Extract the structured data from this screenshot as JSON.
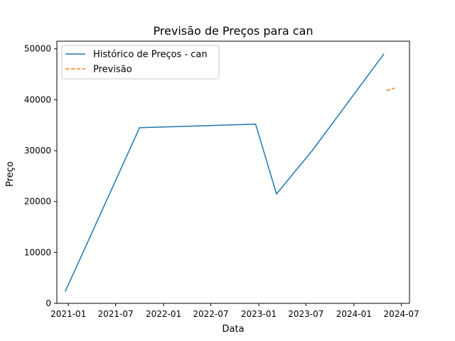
{
  "chart_data": {
    "type": "line",
    "title": "Previsão de Preços para can",
    "xlabel": "Data",
    "ylabel": "Preço",
    "x_type": "date",
    "xlim": [
      "2020-11-18",
      "2024-08-01"
    ],
    "ylim": [
      0,
      51500
    ],
    "x_ticks": [
      "2021-01-01",
      "2021-07-01",
      "2022-01-01",
      "2022-07-01",
      "2023-01-01",
      "2023-07-01",
      "2024-01-01",
      "2024-07-01"
    ],
    "x_tick_labels": [
      "2021-01",
      "2021-07",
      "2022-01",
      "2022-07",
      "2023-01",
      "2023-07",
      "2024-01",
      "2024-07"
    ],
    "y_ticks": [
      0,
      10000,
      20000,
      30000,
      40000,
      50000
    ],
    "y_tick_labels": [
      "0",
      "10000",
      "20000",
      "30000",
      "40000",
      "50000"
    ],
    "legend_position": "top-left",
    "grid": false,
    "series": [
      {
        "name": "Histórico de Preços - can",
        "color": "#1f77b4",
        "style": "solid",
        "points": [
          {
            "x": "2020-12-20",
            "y": 2300
          },
          {
            "x": "2021-10-01",
            "y": 34500
          },
          {
            "x": "2022-12-20",
            "y": 35200
          },
          {
            "x": "2023-03-10",
            "y": 21500
          },
          {
            "x": "2023-07-25",
            "y": 30000
          },
          {
            "x": "2024-04-25",
            "y": 49000
          }
        ]
      },
      {
        "name": "Previsão",
        "color": "#ff7f0e",
        "style": "dashed",
        "points": [
          {
            "x": "2024-05-05",
            "y": 41800
          },
          {
            "x": "2024-06-05",
            "y": 42300
          }
        ]
      }
    ]
  }
}
